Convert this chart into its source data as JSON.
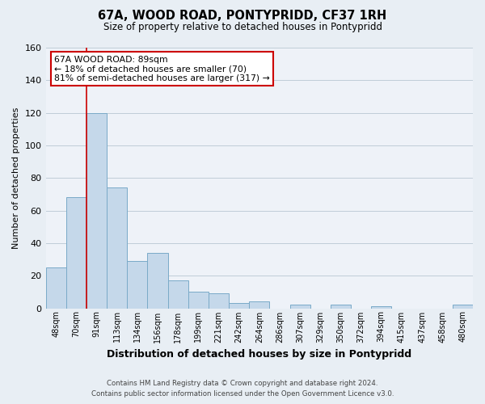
{
  "title": "67A, WOOD ROAD, PONTYPRIDD, CF37 1RH",
  "subtitle": "Size of property relative to detached houses in Pontypridd",
  "xlabel": "Distribution of detached houses by size in Pontypridd",
  "ylabel": "Number of detached properties",
  "bin_labels": [
    "48sqm",
    "70sqm",
    "91sqm",
    "113sqm",
    "134sqm",
    "156sqm",
    "178sqm",
    "199sqm",
    "221sqm",
    "242sqm",
    "264sqm",
    "286sqm",
    "307sqm",
    "329sqm",
    "350sqm",
    "372sqm",
    "394sqm",
    "415sqm",
    "437sqm",
    "458sqm",
    "480sqm"
  ],
  "bar_heights": [
    25,
    68,
    120,
    74,
    29,
    34,
    17,
    10,
    9,
    3,
    4,
    0,
    2,
    0,
    2,
    0,
    1,
    0,
    0,
    0,
    2
  ],
  "bar_color": "#c5d8ea",
  "bar_edge_color": "#7aaac8",
  "vline_x": 1.5,
  "vline_color": "#cc0000",
  "ylim": [
    0,
    160
  ],
  "yticks": [
    0,
    20,
    40,
    60,
    80,
    100,
    120,
    140,
    160
  ],
  "annotation_title": "67A WOOD ROAD: 89sqm",
  "annotation_line1": "← 18% of detached houses are smaller (70)",
  "annotation_line2": "81% of semi-detached houses are larger (317) →",
  "annotation_box_facecolor": "#ffffff",
  "annotation_box_edgecolor": "#cc0000",
  "footer_line1": "Contains HM Land Registry data © Crown copyright and database right 2024.",
  "footer_line2": "Contains public sector information licensed under the Open Government Licence v3.0.",
  "bg_color": "#e8eef4",
  "plot_bg_color": "#eef2f8",
  "grid_color": "#c0ccd8"
}
